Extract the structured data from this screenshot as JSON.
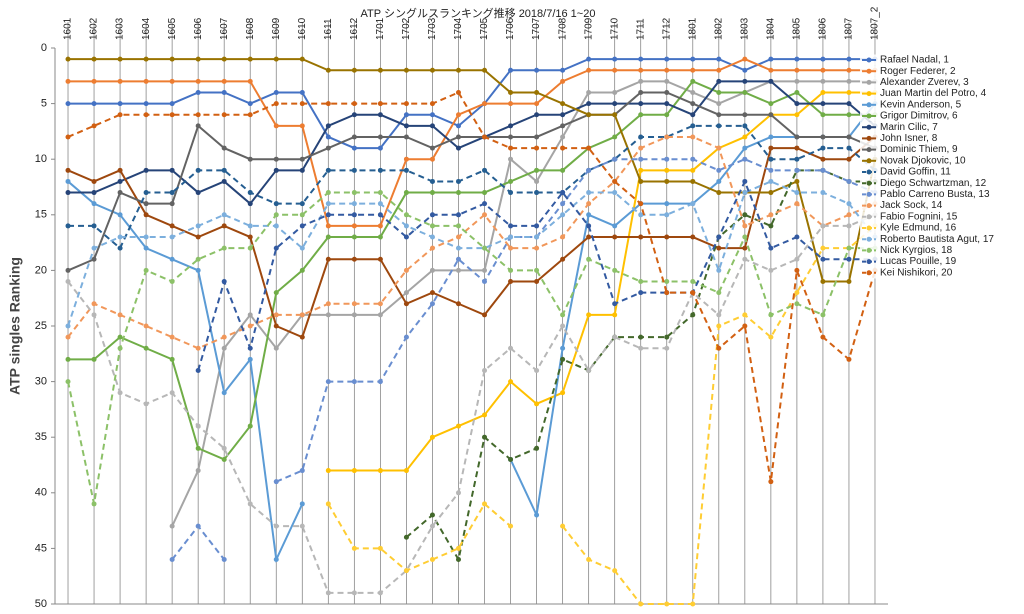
{
  "chart_data": {
    "type": "line",
    "title": "ATP シングルスランキング推移 2018/7/16 1~20",
    "y_label": "ATP singles Ranking",
    "categories": [
      "1601",
      "1602",
      "1603",
      "1604",
      "1605",
      "1606",
      "1607",
      "1608",
      "1609",
      "1610",
      "1611",
      "1612",
      "1701",
      "1702",
      "1703",
      "1704",
      "1705",
      "1706",
      "1707",
      "1708",
      "1709",
      "1710",
      "1711",
      "1712",
      "1801",
      "1802",
      "1803",
      "1804",
      "1805",
      "1806",
      "1807",
      "1807_2"
    ],
    "ylim": [
      0,
      50
    ],
    "y_reversed": true,
    "yticks": [
      0,
      5,
      10,
      15,
      20,
      25,
      30,
      35,
      40,
      45,
      50
    ],
    "grid": true,
    "legend": "right",
    "series": [
      {
        "name": "Rafael Nadal, 1",
        "color": "#4472c4",
        "dashed": false,
        "values": [
          5,
          5,
          5,
          5,
          5,
          4,
          4,
          5,
          4,
          4,
          8,
          9,
          9,
          6,
          6,
          7,
          5,
          2,
          2,
          2,
          1,
          1,
          1,
          1,
          1,
          1,
          2,
          1,
          1,
          1,
          1,
          1
        ]
      },
      {
        "name": "Roger Federer, 2",
        "color": "#ed7d31",
        "dashed": false,
        "values": [
          3,
          3,
          3,
          3,
          3,
          3,
          3,
          3,
          7,
          7,
          16,
          16,
          16,
          10,
          10,
          6,
          5,
          5,
          5,
          3,
          2,
          2,
          2,
          2,
          2,
          2,
          1,
          2,
          2,
          2,
          2,
          2
        ]
      },
      {
        "name": "Alexander Zverev, 3",
        "color": "#a5a5a5",
        "dashed": false,
        "values": [
          null,
          null,
          null,
          null,
          43,
          38,
          27,
          24,
          27,
          24,
          24,
          24,
          24,
          22,
          20,
          20,
          20,
          10,
          12,
          8,
          4,
          4,
          3,
          3,
          4,
          5,
          4,
          3,
          3,
          3,
          3,
          3
        ]
      },
      {
        "name": "Juan Martin del Potro, 4",
        "color": "#ffc000",
        "dashed": false,
        "values": [
          null,
          null,
          null,
          null,
          null,
          null,
          null,
          null,
          null,
          null,
          38,
          38,
          38,
          38,
          35,
          34,
          33,
          30,
          32,
          31,
          24,
          24,
          11,
          11,
          11,
          9,
          8,
          6,
          6,
          4,
          4,
          4
        ]
      },
      {
        "name": "Kevin Anderson, 5",
        "color": "#5b9bd5",
        "dashed": false,
        "values": [
          12,
          14,
          15,
          18,
          19,
          20,
          31,
          28,
          46,
          41,
          null,
          null,
          null,
          null,
          null,
          null,
          null,
          37,
          42,
          27,
          15,
          16,
          14,
          14,
          14,
          12,
          9,
          8,
          8,
          8,
          8,
          5
        ]
      },
      {
        "name": "Grigor Dimitrov, 6",
        "color": "#70ad47",
        "dashed": false,
        "values": [
          28,
          28,
          26,
          27,
          28,
          36,
          37,
          34,
          22,
          20,
          17,
          17,
          17,
          13,
          13,
          13,
          13,
          12,
          11,
          11,
          9,
          8,
          6,
          6,
          3,
          4,
          4,
          5,
          4,
          6,
          6,
          6
        ]
      },
      {
        "name": "Marin Cilic, 7",
        "color": "#264478",
        "dashed": false,
        "values": [
          13,
          13,
          12,
          11,
          11,
          13,
          12,
          14,
          11,
          11,
          7,
          6,
          6,
          7,
          7,
          9,
          8,
          7,
          6,
          6,
          5,
          5,
          5,
          5,
          6,
          3,
          3,
          3,
          5,
          5,
          5,
          7
        ]
      },
      {
        "name": "John Isner, 8",
        "color": "#9e480e",
        "dashed": false,
        "values": [
          11,
          12,
          11,
          15,
          16,
          17,
          16,
          17,
          25,
          26,
          19,
          19,
          19,
          23,
          22,
          23,
          24,
          21,
          21,
          19,
          17,
          17,
          17,
          17,
          17,
          18,
          18,
          9,
          9,
          10,
          10,
          8
        ]
      },
      {
        "name": "Dominic Thiem, 9",
        "color": "#636363",
        "dashed": false,
        "values": [
          20,
          19,
          13,
          14,
          14,
          7,
          9,
          10,
          10,
          10,
          9,
          8,
          8,
          8,
          9,
          8,
          8,
          8,
          8,
          7,
          6,
          6,
          4,
          4,
          5,
          6,
          6,
          6,
          8,
          8,
          8,
          9
        ]
      },
      {
        "name": "Novak Djokovic, 10",
        "color": "#997300",
        "dashed": false,
        "values": [
          1,
          1,
          1,
          1,
          1,
          1,
          1,
          1,
          1,
          1,
          2,
          2,
          2,
          2,
          2,
          2,
          2,
          4,
          4,
          5,
          6,
          6,
          12,
          12,
          12,
          13,
          13,
          13,
          12,
          21,
          21,
          10
        ]
      },
      {
        "name": "David Goffin, 11",
        "color": "#255e91",
        "dashed": true,
        "values": [
          16,
          16,
          18,
          13,
          13,
          11,
          11,
          13,
          14,
          14,
          11,
          11,
          11,
          11,
          12,
          12,
          11,
          13,
          13,
          13,
          11,
          10,
          8,
          8,
          7,
          7,
          7,
          10,
          10,
          9,
          9,
          11
        ]
      },
      {
        "name": "Diego Schwartzman, 12",
        "color": "#43682b",
        "dashed": true,
        "values": [
          null,
          null,
          null,
          null,
          null,
          null,
          null,
          null,
          null,
          null,
          null,
          null,
          null,
          44,
          42,
          46,
          35,
          37,
          36,
          28,
          29,
          26,
          26,
          26,
          24,
          17,
          15,
          16,
          11,
          11,
          12,
          12
        ]
      },
      {
        "name": "Pablo Carreno Busta, 13",
        "color": "#698ed0",
        "dashed": true,
        "values": [
          null,
          null,
          null,
          null,
          46,
          43,
          46,
          null,
          39,
          38,
          30,
          30,
          30,
          26,
          23,
          19,
          21,
          17,
          17,
          14,
          11,
          10,
          10,
          10,
          10,
          11,
          10,
          11,
          11,
          11,
          12,
          13
        ]
      },
      {
        "name": "Jack Sock, 14",
        "color": "#f1975a",
        "dashed": true,
        "values": [
          26,
          23,
          24,
          25,
          26,
          27,
          26,
          25,
          24,
          24,
          23,
          23,
          23,
          20,
          18,
          17,
          15,
          18,
          18,
          17,
          14,
          12,
          9,
          8,
          8,
          9,
          16,
          15,
          14,
          16,
          15,
          14
        ]
      },
      {
        "name": "Fabio Fognini, 15",
        "color": "#b7b7b7",
        "dashed": true,
        "values": [
          21,
          24,
          31,
          32,
          31,
          34,
          36,
          41,
          43,
          43,
          49,
          49,
          49,
          47,
          43,
          40,
          29,
          27,
          29,
          25,
          29,
          26,
          27,
          27,
          22,
          24,
          19,
          20,
          19,
          16,
          16,
          15
        ]
      },
      {
        "name": "Kyle Edmund, 16",
        "color": "#ffcd33",
        "dashed": true,
        "values": [
          null,
          null,
          null,
          null,
          null,
          null,
          null,
          null,
          null,
          null,
          41,
          45,
          45,
          47,
          46,
          45,
          41,
          43,
          null,
          43,
          46,
          47,
          50,
          50,
          50,
          25,
          24,
          26,
          22,
          18,
          18,
          16
        ]
      },
      {
        "name": "Roberto Bautista Agut, 17",
        "color": "#7cafdd",
        "dashed": true,
        "values": [
          25,
          18,
          17,
          17,
          17,
          16,
          15,
          16,
          16,
          18,
          14,
          14,
          14,
          16,
          17,
          18,
          18,
          17,
          17,
          15,
          13,
          13,
          15,
          15,
          14,
          20,
          13,
          12,
          13,
          13,
          14,
          17
        ]
      },
      {
        "name": "Nick Kyrgios, 18",
        "color": "#8cc168",
        "dashed": true,
        "values": [
          30,
          41,
          27,
          20,
          21,
          19,
          18,
          18,
          15,
          15,
          13,
          13,
          13,
          15,
          16,
          16,
          18,
          20,
          20,
          24,
          19,
          20,
          21,
          21,
          21,
          22,
          17,
          24,
          23,
          24,
          18,
          18
        ]
      },
      {
        "name": "Lucas Pouille, 19",
        "color": "#335aa1",
        "dashed": true,
        "values": [
          null,
          null,
          null,
          null,
          null,
          29,
          21,
          27,
          18,
          16,
          15,
          15,
          15,
          17,
          15,
          15,
          14,
          16,
          16,
          13,
          16,
          23,
          22,
          22,
          22,
          17,
          12,
          18,
          17,
          19,
          19,
          19
        ]
      },
      {
        "name": "Kei Nishikori, 20",
        "color": "#d26012",
        "dashed": true,
        "values": [
          8,
          7,
          6,
          6,
          6,
          6,
          6,
          6,
          5,
          5,
          5,
          5,
          5,
          5,
          5,
          4,
          8,
          9,
          9,
          9,
          9,
          12,
          14,
          22,
          22,
          27,
          25,
          39,
          20,
          26,
          28,
          20
        ]
      }
    ]
  }
}
